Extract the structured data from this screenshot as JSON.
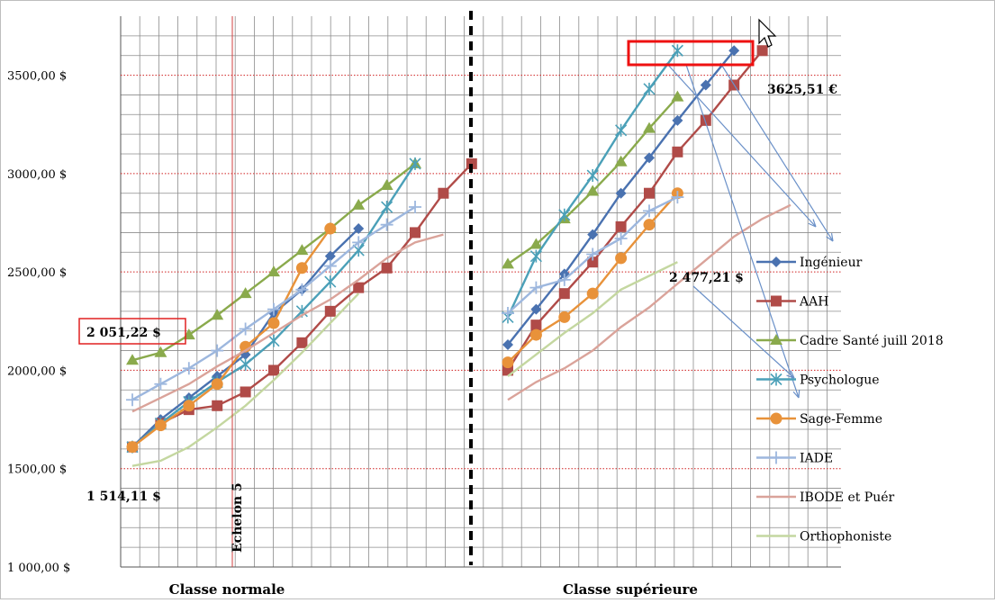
{
  "chart_data": {
    "type": "line",
    "title": "",
    "xlabel": "",
    "ylabel": "",
    "ylim": [
      1000,
      3800
    ],
    "yticks": [
      1000,
      1500,
      2000,
      2500,
      3000,
      3500
    ],
    "ytick_labels": [
      "1 000,00 $",
      "1500,00 $",
      "2000,00 $",
      "2500,00 $",
      "3000,00 $",
      "3500,00 $"
    ],
    "groups": [
      {
        "label": "Classe normale",
        "steps": 13
      },
      {
        "label": "Classe supérieure",
        "steps": 14
      }
    ],
    "echelon_label": "Echelon 5",
    "series": [
      {
        "name": "Ingénieur",
        "color": "#4a72b0",
        "marker": "diamond",
        "normale": [
          1610,
          1750,
          1860,
          1970,
          2080,
          2290,
          2410,
          2580,
          2720
        ],
        "superieure": [
          2130,
          2310,
          2490,
          2690,
          2900,
          3080,
          3270,
          3450,
          3625
        ]
      },
      {
        "name": "AAH",
        "color": "#b04b48",
        "marker": "square",
        "normale": [
          1610,
          1730,
          1800,
          1820,
          1890,
          2000,
          2140,
          2300,
          2420,
          2520,
          2700,
          2900,
          3050
        ],
        "superieure": [
          2000,
          2230,
          2390,
          2550,
          2730,
          2900,
          3110,
          3270,
          3450,
          3625
        ]
      },
      {
        "name": "Cadre Santé juill 2018",
        "color": "#8aaa4c",
        "marker": "triangle",
        "normale": [
          2051,
          2090,
          2180,
          2280,
          2390,
          2500,
          2610,
          2720,
          2840,
          2940,
          3050
        ],
        "superieure": [
          2540,
          2640,
          2770,
          2910,
          3060,
          3230,
          3390
        ]
      },
      {
        "name": "Psychologue",
        "color": "#4ba0b8",
        "marker": "star",
        "normale": [
          1610,
          1730,
          1840,
          1940,
          2030,
          2150,
          2300,
          2450,
          2610,
          2830,
          3050
        ],
        "superieure": [
          2270,
          2580,
          2790,
          2990,
          3220,
          3430,
          3625
        ]
      },
      {
        "name": "Sage-Femme",
        "color": "#e8923a",
        "marker": "circle",
        "normale": [
          1610,
          1720,
          1820,
          1930,
          2120,
          2240,
          2520,
          2720
        ],
        "superieure": [
          2040,
          2180,
          2270,
          2390,
          2570,
          2740,
          2900
        ]
      },
      {
        "name": "IADE",
        "color": "#9db7de",
        "marker": "plus",
        "normale": [
          1850,
          1930,
          2010,
          2100,
          2210,
          2310,
          2410,
          2530,
          2650,
          2740,
          2830
        ],
        "superieure": [
          2290,
          2420,
          2460,
          2590,
          2670,
          2810,
          2880
        ]
      },
      {
        "name": "IBODE et Puér",
        "color": "#daa39a",
        "marker": "dash",
        "normale": [
          1790,
          1860,
          1930,
          2020,
          2100,
          2190,
          2280,
          2360,
          2460,
          2570,
          2650,
          2690
        ],
        "superieure": [
          1850,
          1940,
          2010,
          2100,
          2220,
          2320,
          2440,
          2560,
          2680,
          2770,
          2840
        ]
      },
      {
        "name": "Orthophoniste",
        "color": "#c4d7a0",
        "marker": "dash",
        "normale": [
          1514,
          1540,
          1610,
          1710,
          1820,
          1950,
          2090,
          2240,
          2390
        ],
        "superieure": [
          1970,
          2080,
          2190,
          2290,
          2410,
          2480,
          2550
        ]
      }
    ],
    "annotations": {
      "min_normale": "1 514,11 $",
      "max_cadre": "2 051,22 $",
      "max_superieure": "3625,51 €",
      "mid_superieure": "2 477,21 $"
    },
    "legend_position": "right"
  }
}
